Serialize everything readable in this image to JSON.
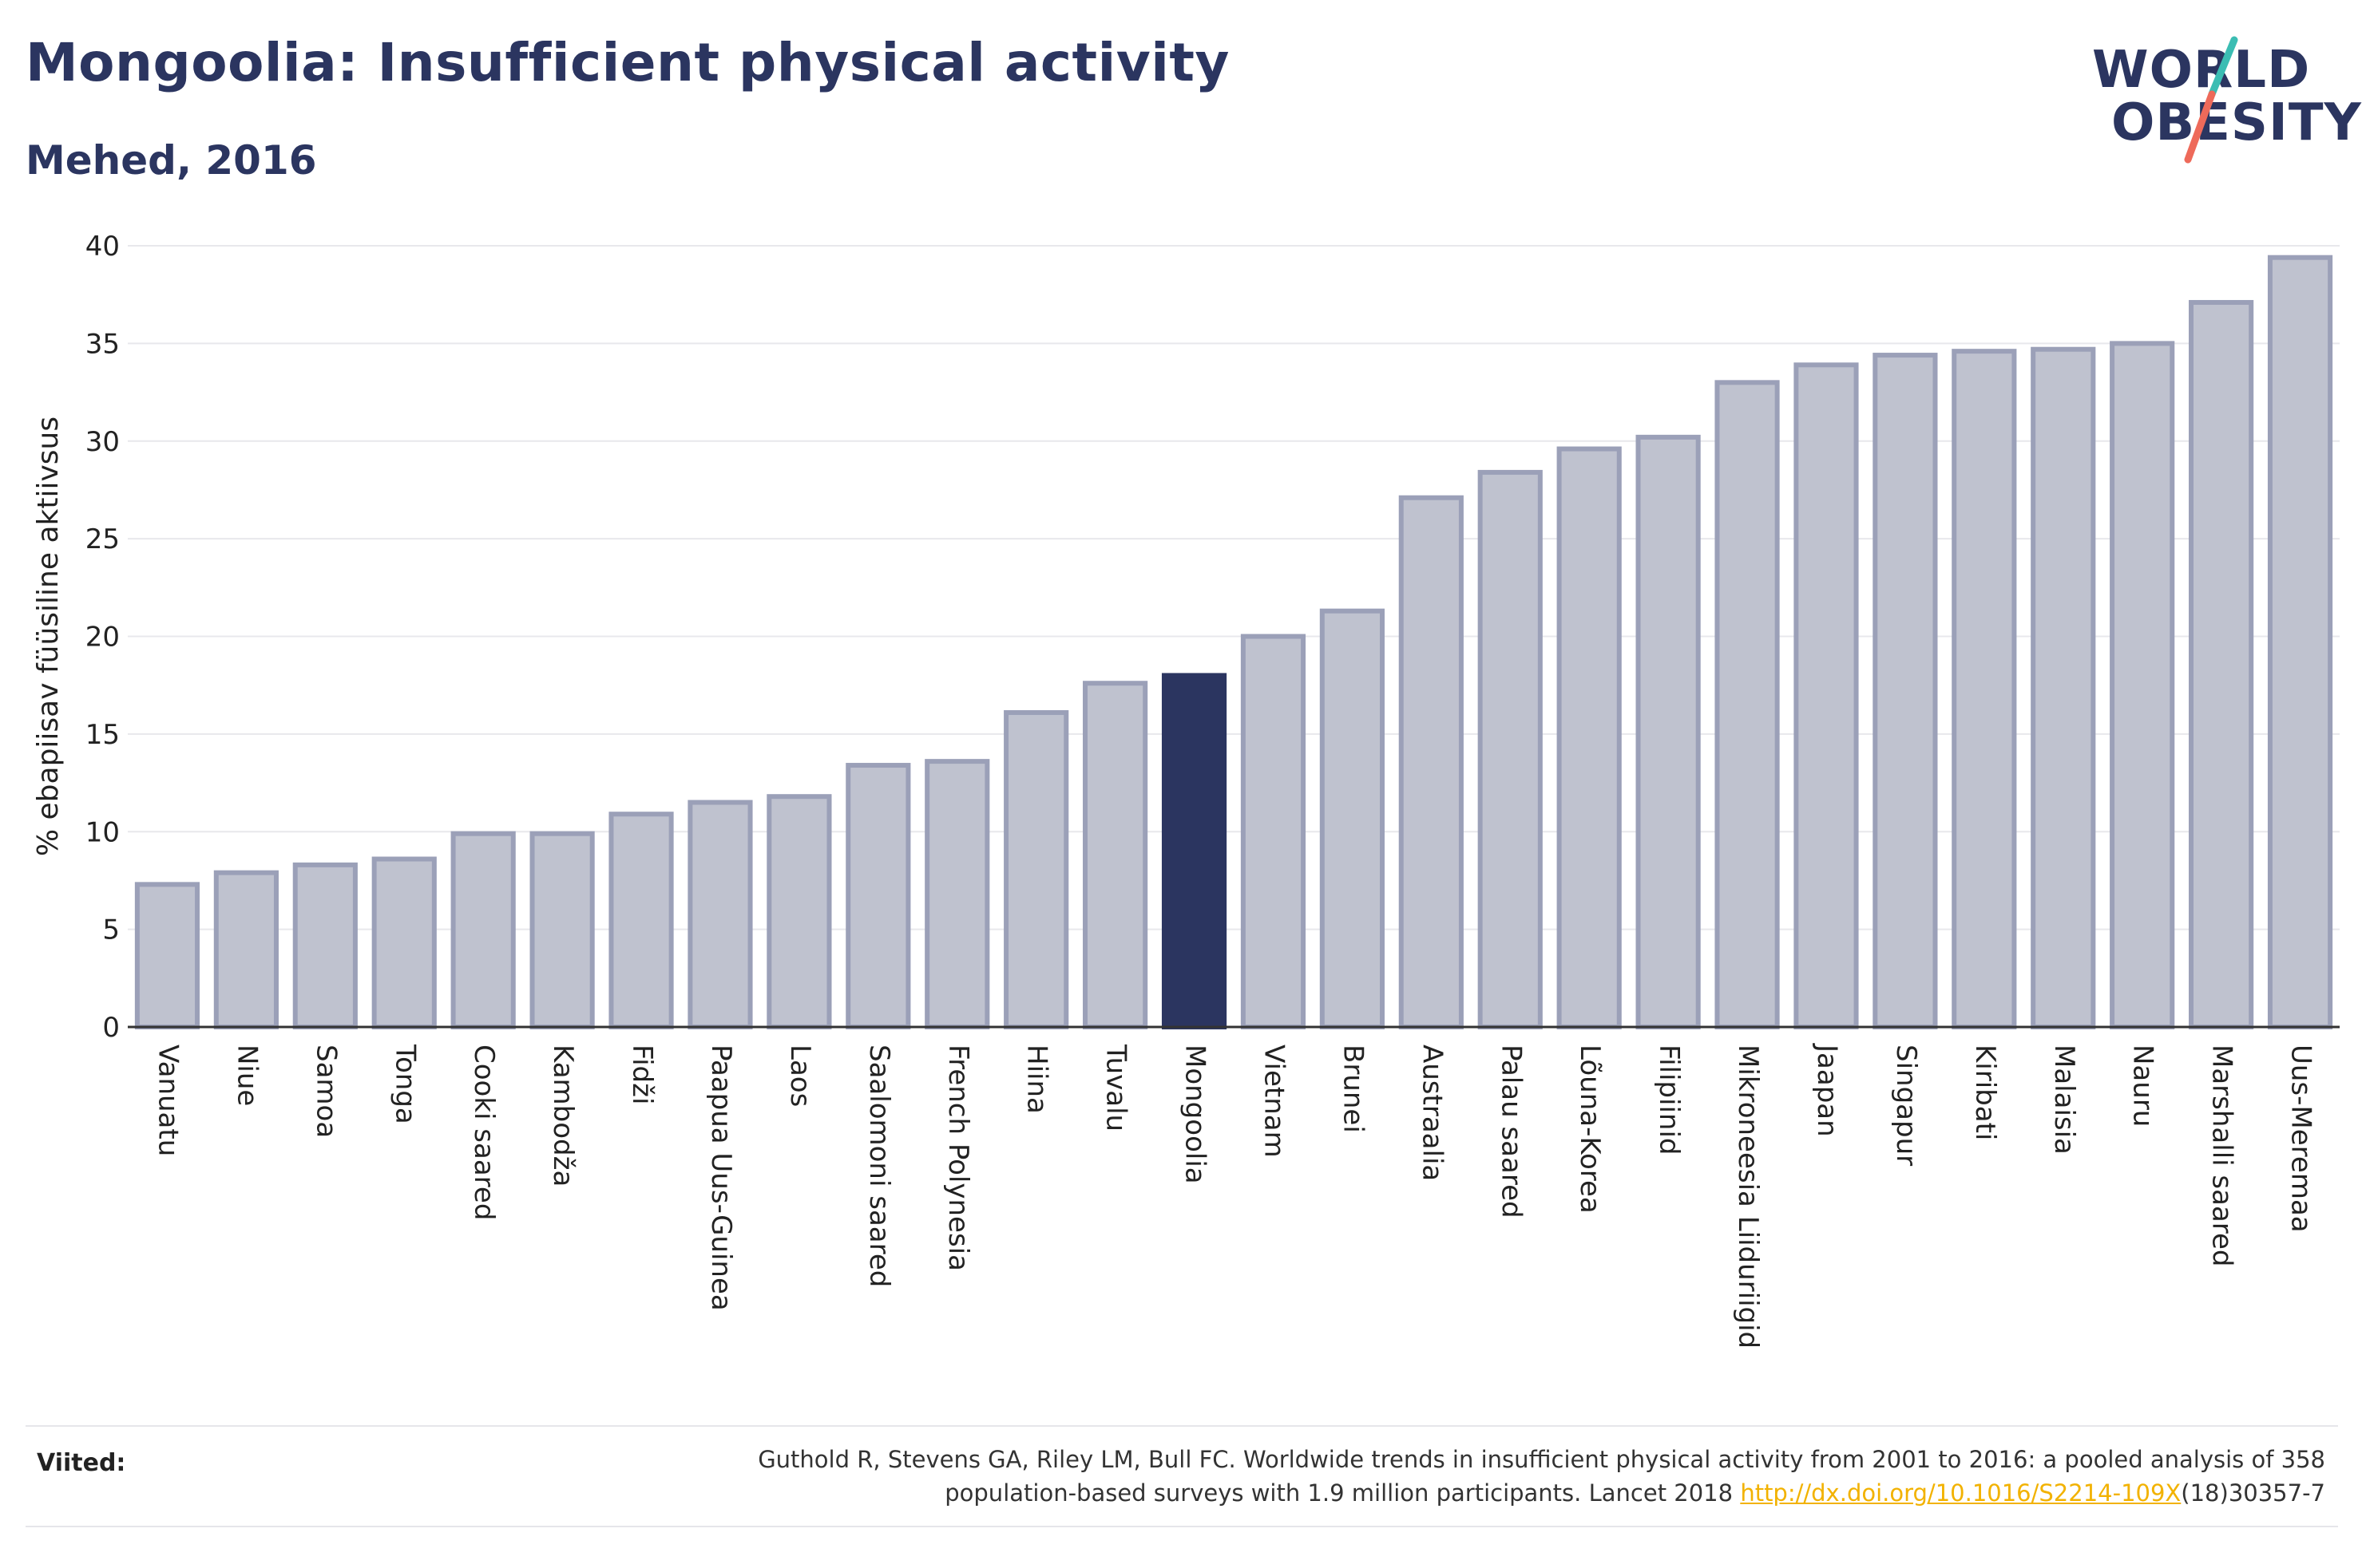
{
  "header": {
    "title": "Mongoolia: Insufficient physical activity",
    "subtitle": "Mehed, 2016"
  },
  "logo": {
    "line1": "WORLD",
    "line2": "OBESITY"
  },
  "colors": {
    "bar": "#bfc2cf",
    "bar_border": "#9ba0b8",
    "highlight": "#2b3560",
    "grid": "#e8e8ec",
    "text": "#2b3560"
  },
  "chart_data": {
    "type": "bar",
    "title": "Mongoolia: Insufficient physical activity",
    "subtitle": "Mehed, 2016",
    "ylabel": "% ebapiisav füüsiline aktiivsus",
    "xlabel": "",
    "ylim": [
      0,
      40
    ],
    "yticks": [
      0,
      5,
      10,
      15,
      20,
      25,
      30,
      35,
      40
    ],
    "grid": true,
    "highlight": "Mongoolia",
    "categories": [
      "Vanuatu",
      "Niue",
      "Samoa",
      "Tonga",
      "Cooki saared",
      "Kambodža",
      "Fidži",
      "Paapua Uus-Guinea",
      "Laos",
      "Saalomoni saared",
      "French Polynesia",
      "Hiina",
      "Tuvalu",
      "Mongoolia",
      "Vietnam",
      "Brunei",
      "Austraalia",
      "Palau saared",
      "Lõuna-Korea",
      "Filipiinid",
      "Mikroneesia Liiduriigid",
      "Jaapan",
      "Singapur",
      "Kiribati",
      "Malaisia",
      "Nauru",
      "Marshalli saared",
      "Uus-Meremaa"
    ],
    "values": [
      7.3,
      7.9,
      8.3,
      8.6,
      9.9,
      9.9,
      10.9,
      11.5,
      11.8,
      13.4,
      13.6,
      16.1,
      17.6,
      18.0,
      20.0,
      21.3,
      27.1,
      28.4,
      29.6,
      30.2,
      33.0,
      33.9,
      34.4,
      34.6,
      34.7,
      35.0,
      37.1,
      39.4
    ]
  },
  "footer": {
    "label": "Viited:",
    "citation_line1": "Guthold R, Stevens GA, Riley LM, Bull FC. Worldwide trends in insufficient physical activity from 2001 to 2016: a pooled analysis of 358",
    "citation_line2_pre": "population-based surveys with 1.9 million participants. Lancet 2018 ",
    "citation_link": "http://dx.doi.org/10.1016/S2214-109X",
    "citation_line2_post": "(18)30357-7"
  }
}
